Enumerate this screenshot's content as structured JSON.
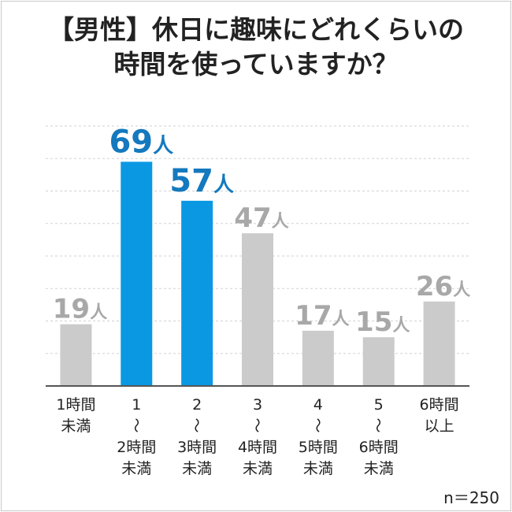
{
  "title_lines": [
    "【男性】休日に趣味にどれくらいの",
    "時間を使っていますか？"
  ],
  "sample_note": "n＝250",
  "colors": {
    "highlight": "#0a98e3",
    "normal": "#cbcbcb",
    "normal_label": "#a8a8a8",
    "highlight_label": "#1479be"
  },
  "chart_data": {
    "type": "bar",
    "unit": "人",
    "categories": [
      [
        "1時間",
        "未満"
      ],
      [
        "1",
        "〜",
        "2時間",
        "未満"
      ],
      [
        "2",
        "〜",
        "3時間",
        "未満"
      ],
      [
        "3",
        "〜",
        "4時間",
        "未満"
      ],
      [
        "4",
        "〜",
        "5時間",
        "未満"
      ],
      [
        "5",
        "〜",
        "6時間",
        "未満"
      ],
      [
        "6時間",
        "以上"
      ]
    ],
    "values": [
      19,
      69,
      57,
      47,
      17,
      15,
      26
    ],
    "highlighted": [
      false,
      true,
      true,
      false,
      false,
      false,
      false
    ],
    "ylim": [
      0,
      80
    ],
    "grid": true
  }
}
